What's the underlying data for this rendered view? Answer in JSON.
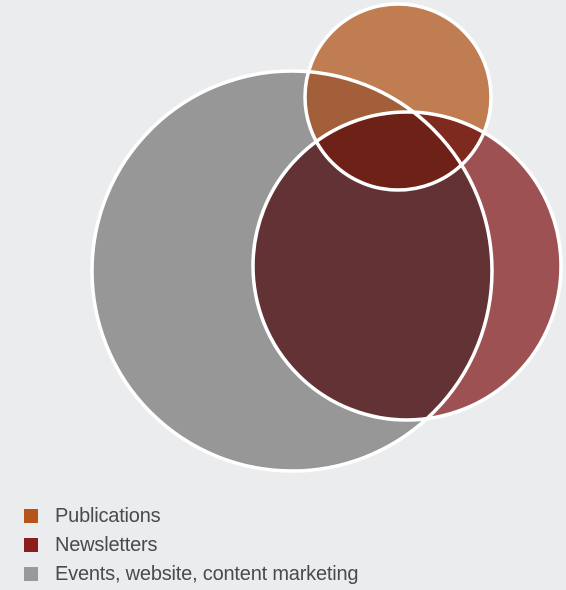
{
  "legend": {
    "items": [
      {
        "label": "Publications",
        "color": "#b5541b"
      },
      {
        "label": "Newsletters",
        "color": "#8c1d1d"
      },
      {
        "label": "Events, website, content marketing",
        "color": "#999999"
      }
    ]
  },
  "colors": {
    "background": "#ebecee",
    "events": "#979797",
    "newsletters": "#9d5152",
    "publications": "#c07d52",
    "newsletters_events_overlap": "#623235",
    "publications_events_overlap": "#a25f3a",
    "publications_newsletters_overlap": "#7e2a1f",
    "triple_overlap": "#6e2117",
    "outline": "#ffffff"
  }
}
